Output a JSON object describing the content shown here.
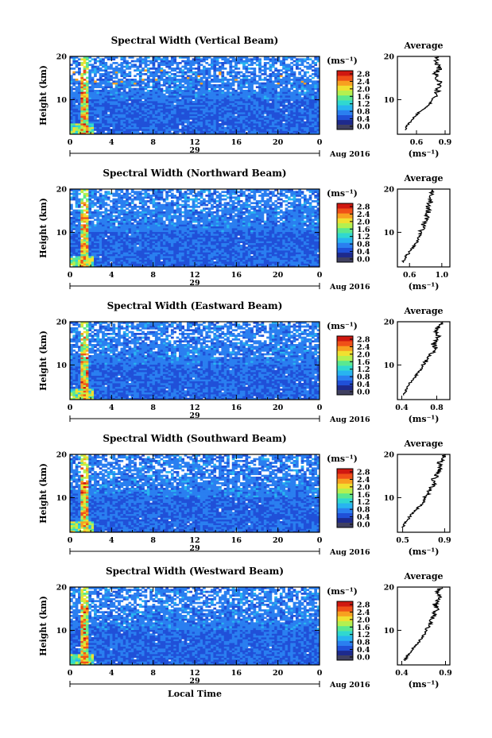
{
  "chart_data": [
    {
      "type": "heatmap",
      "title": "Spectral Width (Vertical Beam)",
      "ylabel": "Height (km)",
      "ylim": [
        2,
        20
      ],
      "yticks": [
        20,
        10
      ],
      "xlim": [
        0,
        24
      ],
      "xticks": [
        "0",
        "4",
        "8",
        "12",
        "16",
        "20",
        "0"
      ],
      "day_label": "29",
      "month_label": "Aug 2016",
      "colorbar": {
        "unit": "(ms⁻¹)",
        "ticks": [
          "2.8",
          "2.4",
          "2.0",
          "1.6",
          "1.2",
          "0.8",
          "0.4",
          "0.0"
        ],
        "range": [
          0,
          3.0
        ]
      },
      "profile": {
        "title": "Average",
        "unit": "(ms⁻¹)",
        "xlim": [
          0.4,
          0.95
        ],
        "xticks": [
          0.6,
          0.9
        ],
        "xticklabels": [
          "0.6",
          "0.9"
        ],
        "ylim": [
          2,
          20
        ],
        "yticks": [
          20,
          10
        ],
        "heights": [
          3,
          4,
          5,
          6,
          7,
          8,
          9,
          10,
          11,
          12,
          13,
          14,
          15,
          16,
          17,
          18,
          19,
          20
        ],
        "values": [
          0.48,
          0.5,
          0.54,
          0.58,
          0.62,
          0.68,
          0.74,
          0.77,
          0.8,
          0.82,
          0.83,
          0.84,
          0.82,
          0.8,
          0.84,
          0.82,
          0.8,
          0.83
        ]
      }
    },
    {
      "type": "heatmap",
      "title": "Spectral Width (Northward Beam)",
      "ylabel": "Height (km)",
      "ylim": [
        2,
        20
      ],
      "yticks": [
        20,
        10
      ],
      "xlim": [
        0,
        24
      ],
      "xticks": [
        "0",
        "4",
        "8",
        "12",
        "16",
        "20",
        "0"
      ],
      "day_label": "29",
      "month_label": "Aug 2016",
      "colorbar": {
        "unit": "(ms⁻¹)",
        "ticks": [
          "2.8",
          "2.4",
          "2.0",
          "1.6",
          "1.2",
          "0.8",
          "0.4",
          "0.0"
        ],
        "range": [
          0,
          3.0
        ]
      },
      "profile": {
        "title": "Average",
        "unit": "(ms⁻¹)",
        "xlim": [
          0.45,
          1.1
        ],
        "xticks": [
          0.6,
          1.0
        ],
        "xticklabels": [
          "0.6",
          "1.0"
        ],
        "ylim": [
          2,
          20
        ],
        "yticks": [
          20,
          10
        ],
        "heights": [
          3,
          4,
          5,
          6,
          7,
          8,
          9,
          10,
          11,
          12,
          13,
          14,
          15,
          16,
          17,
          18,
          19,
          20
        ],
        "values": [
          0.52,
          0.54,
          0.58,
          0.62,
          0.66,
          0.7,
          0.72,
          0.74,
          0.76,
          0.78,
          0.8,
          0.82,
          0.84,
          0.82,
          0.86,
          0.84,
          0.88,
          0.86
        ]
      }
    },
    {
      "type": "heatmap",
      "title": "Spectral Width (Eastward Beam)",
      "ylabel": "Height (km)",
      "ylim": [
        2,
        20
      ],
      "yticks": [
        20,
        10
      ],
      "xlim": [
        0,
        24
      ],
      "xticks": [
        "0",
        "4",
        "8",
        "12",
        "16",
        "20",
        "0"
      ],
      "day_label": "29",
      "month_label": "Aug 2016",
      "colorbar": {
        "unit": "(ms⁻¹)",
        "ticks": [
          "2.8",
          "2.4",
          "2.0",
          "1.6",
          "1.2",
          "0.8",
          "0.4",
          "0.0"
        ],
        "range": [
          0,
          3.0
        ]
      },
      "profile": {
        "title": "Average",
        "unit": "(ms⁻¹)",
        "xlim": [
          0.35,
          0.95
        ],
        "xticks": [
          0.4,
          0.8
        ],
        "xticklabels": [
          "0.4",
          "0.8"
        ],
        "ylim": [
          2,
          20
        ],
        "yticks": [
          20,
          10
        ],
        "heights": [
          3,
          4,
          5,
          6,
          7,
          8,
          9,
          10,
          11,
          12,
          13,
          14,
          15,
          16,
          17,
          18,
          19,
          20
        ],
        "values": [
          0.42,
          0.44,
          0.47,
          0.5,
          0.54,
          0.58,
          0.62,
          0.64,
          0.68,
          0.72,
          0.75,
          0.78,
          0.76,
          0.8,
          0.82,
          0.78,
          0.84,
          0.86
        ]
      }
    },
    {
      "type": "heatmap",
      "title": "Spectral Width (Southward Beam)",
      "ylabel": "Height (km)",
      "ylim": [
        2,
        20
      ],
      "yticks": [
        20,
        10
      ],
      "xlim": [
        0,
        24
      ],
      "xticks": [
        "0",
        "4",
        "8",
        "12",
        "16",
        "20",
        "0"
      ],
      "day_label": "29",
      "month_label": "Aug 2016",
      "colorbar": {
        "unit": "(ms⁻¹)",
        "ticks": [
          "2.8",
          "2.4",
          "2.0",
          "1.6",
          "1.2",
          "0.8",
          "0.4",
          "0.0"
        ],
        "range": [
          0,
          3.0
        ]
      },
      "profile": {
        "title": "Average",
        "unit": "(ms⁻¹)",
        "xlim": [
          0.45,
          0.95
        ],
        "xticks": [
          0.5,
          0.9
        ],
        "xticklabels": [
          "0.5",
          "0.9"
        ],
        "ylim": [
          2,
          20
        ],
        "yticks": [
          20,
          10
        ],
        "heights": [
          3,
          4,
          5,
          6,
          7,
          8,
          9,
          10,
          11,
          12,
          13,
          14,
          15,
          16,
          17,
          18,
          19,
          20
        ],
        "values": [
          0.5,
          0.52,
          0.55,
          0.58,
          0.62,
          0.66,
          0.7,
          0.72,
          0.74,
          0.76,
          0.8,
          0.78,
          0.82,
          0.84,
          0.86,
          0.84,
          0.88,
          0.9
        ]
      }
    },
    {
      "type": "heatmap",
      "title": "Spectral Width (Westward Beam)",
      "ylabel": "Height (km)",
      "xlabel": "Local Time",
      "ylim": [
        2,
        20
      ],
      "yticks": [
        20,
        10
      ],
      "xlim": [
        0,
        24
      ],
      "xticks": [
        "0",
        "4",
        "8",
        "12",
        "16",
        "20",
        "0"
      ],
      "day_label": "29",
      "month_label": "Aug 2016",
      "colorbar": {
        "unit": "(ms⁻¹)",
        "ticks": [
          "2.8",
          "2.4",
          "2.0",
          "1.6",
          "1.2",
          "0.8",
          "0.4",
          "0.0"
        ],
        "range": [
          0,
          3.0
        ]
      },
      "profile": {
        "title": "Average",
        "unit": "(ms⁻¹)",
        "xlim": [
          0.35,
          0.95
        ],
        "xticks": [
          0.4,
          0.9
        ],
        "xticklabels": [
          "0.4",
          "0.9"
        ],
        "ylim": [
          2,
          20
        ],
        "yticks": [
          20,
          10
        ],
        "heights": [
          3,
          4,
          5,
          6,
          7,
          8,
          9,
          10,
          11,
          12,
          13,
          14,
          15,
          16,
          17,
          18,
          19,
          20
        ],
        "values": [
          0.44,
          0.46,
          0.5,
          0.54,
          0.58,
          0.62,
          0.66,
          0.68,
          0.7,
          0.74,
          0.76,
          0.78,
          0.8,
          0.78,
          0.82,
          0.84,
          0.8,
          0.86
        ]
      }
    }
  ],
  "colors": {
    "scale": [
      "#1e2a8c",
      "#2050d8",
      "#2a7ff0",
      "#28b4f0",
      "#30d8d0",
      "#5ae890",
      "#b4f050",
      "#f0e030",
      "#f8a020",
      "#f05018",
      "#d01810"
    ],
    "bottom_bar": "#404060"
  }
}
